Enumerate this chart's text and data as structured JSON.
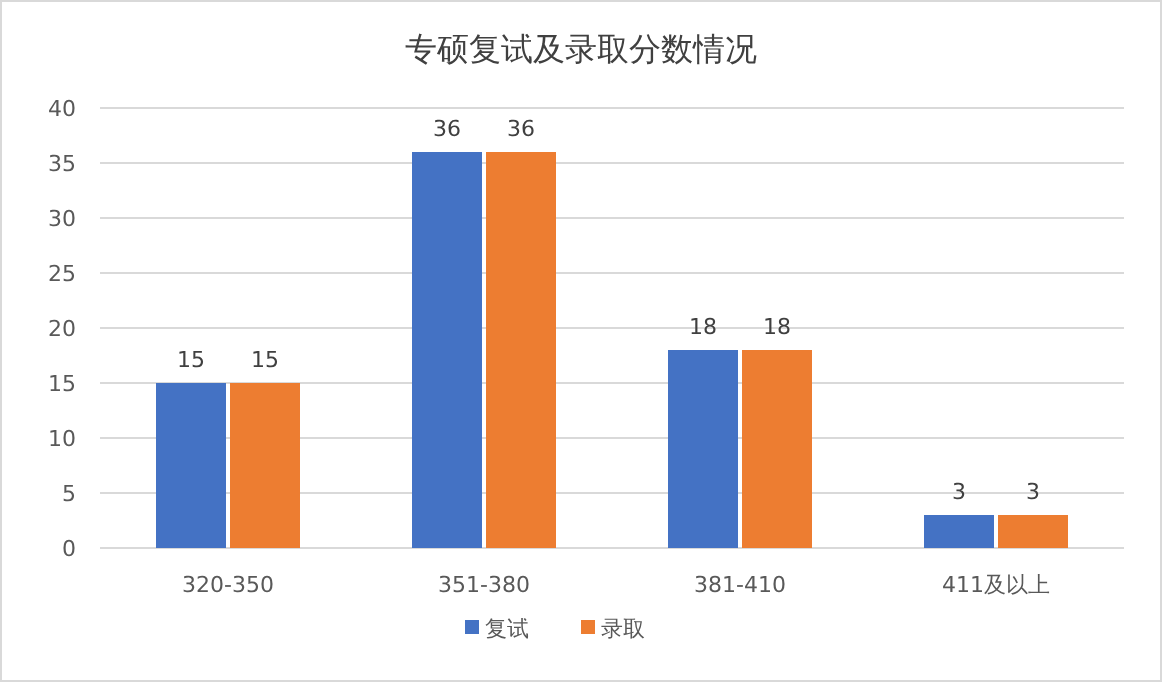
{
  "chart_data": {
    "type": "bar",
    "title": "专硕复试及录取分数情况",
    "categories": [
      "320-350",
      "351-380",
      "381-410",
      "411及以上"
    ],
    "series": [
      {
        "name": "复试",
        "color": "#4472c4",
        "values": [
          15,
          36,
          18,
          3
        ]
      },
      {
        "name": "录取",
        "color": "#ed7d31",
        "values": [
          15,
          36,
          18,
          3
        ]
      }
    ],
    "ylim": [
      0,
      40
    ],
    "yticks": [
      0,
      5,
      10,
      15,
      20,
      25,
      30,
      35,
      40
    ],
    "grid": "y",
    "legend": "bottom",
    "data_labels": true
  }
}
